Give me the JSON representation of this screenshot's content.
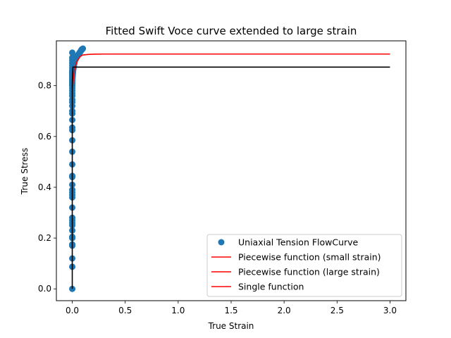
{
  "chart_data": {
    "type": "scatter",
    "title": "Fitted Swift Voce curve extended to large strain",
    "xlabel": "True Strain",
    "ylabel": "True Stress",
    "xlim": [
      -0.15,
      3.15
    ],
    "ylim": [
      -0.0465,
      0.9765
    ],
    "xticks": [
      0.0,
      0.5,
      1.0,
      1.5,
      2.0,
      2.5,
      3.0
    ],
    "xtick_labels": [
      "0.0",
      "0.5",
      "1.0",
      "1.5",
      "2.0",
      "2.5",
      "3.0"
    ],
    "yticks": [
      0.0,
      0.2,
      0.4,
      0.6,
      0.8
    ],
    "ytick_labels": [
      "0.0",
      "0.2",
      "0.4",
      "0.6",
      "0.8"
    ],
    "grid": false,
    "legend_position": "lower-right",
    "series": [
      {
        "name": "Uniaxial Tension FlowCurve",
        "kind": "scatter",
        "color": "#1f77b4",
        "x": [
          0,
          0,
          0,
          0,
          0,
          0,
          0,
          0,
          0,
          0,
          0,
          0,
          0,
          0,
          0,
          0,
          0,
          0,
          0,
          0,
          0,
          0,
          0,
          0,
          0,
          0,
          0,
          0,
          0,
          0,
          0,
          0,
          0,
          0,
          0,
          0,
          0,
          0,
          0,
          0,
          0,
          0,
          0,
          0,
          0,
          0,
          0,
          0,
          0,
          0,
          0,
          0,
          0,
          0,
          0.0005,
          0.001,
          0.0015,
          0.002,
          0.003,
          0.004,
          0.005,
          0.006,
          0.007,
          0.008,
          0.01,
          0.012,
          0.014,
          0.016,
          0.018,
          0.02,
          0.023,
          0.026,
          0.03,
          0.034,
          0.038,
          0.042,
          0.046,
          0.05,
          0.055,
          0.06,
          0.065,
          0.07,
          0.075,
          0.08,
          0.085,
          0.09,
          0.095,
          0.1,
          0.085,
          0.09,
          0.095
        ],
        "y": [
          0.0,
          0.087,
          0.12,
          0.17,
          0.175,
          0.2,
          0.205,
          0.23,
          0.25,
          0.26,
          0.27,
          0.28,
          0.32,
          0.36,
          0.37,
          0.38,
          0.39,
          0.41,
          0.44,
          0.445,
          0.49,
          0.54,
          0.585,
          0.625,
          0.635,
          0.665,
          0.69,
          0.7,
          0.72,
          0.735,
          0.745,
          0.76,
          0.77,
          0.78,
          0.79,
          0.8,
          0.805,
          0.81,
          0.815,
          0.82,
          0.825,
          0.83,
          0.835,
          0.84,
          0.845,
          0.85,
          0.855,
          0.86,
          0.87,
          0.88,
          0.89,
          0.9,
          0.91,
          0.93,
          0.8,
          0.81,
          0.82,
          0.83,
          0.835,
          0.84,
          0.845,
          0.85,
          0.855,
          0.86,
          0.865,
          0.87,
          0.875,
          0.88,
          0.885,
          0.89,
          0.895,
          0.9,
          0.903,
          0.906,
          0.909,
          0.912,
          0.915,
          0.918,
          0.921,
          0.924,
          0.927,
          0.93,
          0.933,
          0.936,
          0.939,
          0.942,
          0.944,
          0.946,
          0.94,
          0.943,
          0.9435
        ]
      },
      {
        "name": "Piecewise function (small strain)",
        "kind": "line",
        "color": "#ff0000",
        "x": [
          0.0,
          0.005,
          0.01,
          0.015,
          0.02,
          0.03,
          0.04,
          0.05,
          0.06,
          0.07,
          0.08,
          0.09,
          0.1
        ],
        "y": [
          0.79,
          0.8,
          0.825,
          0.845,
          0.86,
          0.877,
          0.89,
          0.9,
          0.906,
          0.912,
          0.916,
          0.919,
          0.921
        ]
      },
      {
        "name": "Piecewise function (large strain)",
        "kind": "line",
        "color": "#ff0000",
        "x": [
          0.1,
          0.15,
          0.2,
          0.3,
          0.5,
          1.0,
          1.5,
          2.0,
          2.5,
          3.0
        ],
        "y": [
          0.921,
          0.923,
          0.924,
          0.9245,
          0.9245,
          0.9245,
          0.9245,
          0.9245,
          0.9245,
          0.9245
        ]
      },
      {
        "name": "Single function",
        "kind": "line",
        "color": "#ff0000",
        "x": [],
        "y": []
      },
      {
        "name": "",
        "kind": "line",
        "color": "#000000",
        "x": [
          0.0,
          0.0,
          0.006,
          3.0
        ],
        "y": [
          0.0,
          0.81,
          0.873,
          0.873
        ]
      }
    ]
  }
}
